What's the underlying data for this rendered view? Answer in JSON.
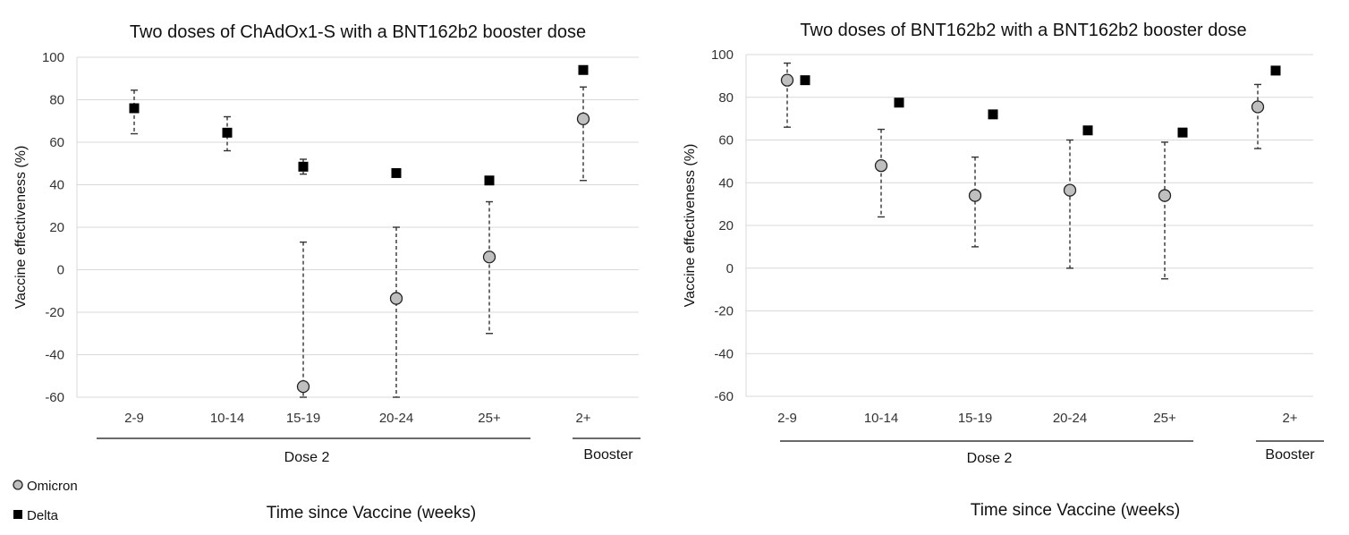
{
  "legend": {
    "placement": "bottom-left",
    "items": [
      {
        "label": "Omicron",
        "marker": "circle",
        "color": "#bfbfbf"
      },
      {
        "label": "Delta",
        "marker": "square",
        "color": "#000000"
      }
    ]
  },
  "colors": {
    "grid": "#d9d9d9",
    "omicron": "#bfbfbf",
    "delta": "#000000",
    "errorbar": "#333333"
  },
  "chart_data": [
    {
      "type": "scatter",
      "title": "Two doses of ChAdOx1-S with a BNT162b2 booster dose",
      "xlabel": "Time since Vaccine (weeks)",
      "ylabel": "Vaccine effectiveness (%)",
      "ylim": [
        -60,
        100
      ],
      "yticks": [
        -60,
        -40,
        -20,
        0,
        20,
        40,
        60,
        80,
        100
      ],
      "grid": true,
      "categories": [
        "2-9",
        "10-14",
        "15-19",
        "20-24",
        "25+",
        "2+"
      ],
      "groups": [
        {
          "label": "Dose 2",
          "categories": [
            "2-9",
            "10-14",
            "15-19",
            "20-24",
            "25+"
          ]
        },
        {
          "label": "Booster",
          "categories": [
            "2+"
          ]
        }
      ],
      "series": [
        {
          "name": "Omicron",
          "marker": "circle",
          "values": [
            null,
            null,
            -55,
            -13.5,
            6,
            71
          ],
          "ci_low": [
            null,
            null,
            -60,
            -60,
            -30,
            42
          ],
          "ci_high": [
            null,
            null,
            13,
            20,
            32,
            86
          ]
        },
        {
          "name": "Delta",
          "marker": "square",
          "values": [
            76,
            64.5,
            48.5,
            45.5,
            42,
            94
          ],
          "ci_low": [
            64,
            56,
            45,
            44.5,
            40.5,
            93
          ],
          "ci_high": [
            84.5,
            72,
            52,
            47,
            43,
            95
          ]
        }
      ]
    },
    {
      "type": "scatter",
      "title": "Two doses of BNT162b2 with a BNT162b2 booster dose",
      "xlabel": "Time since Vaccine (weeks)",
      "ylabel": "Vaccine effectiveness (%)",
      "ylim": [
        -60,
        100
      ],
      "yticks": [
        -60,
        -40,
        -20,
        0,
        20,
        40,
        60,
        80,
        100
      ],
      "grid": true,
      "categories": [
        "2-9",
        "10-14",
        "15-19",
        "20-24",
        "25+",
        "2+"
      ],
      "groups": [
        {
          "label": "Dose 2",
          "categories": [
            "2-9",
            "10-14",
            "15-19",
            "20-24",
            "25+"
          ]
        },
        {
          "label": "Booster",
          "categories": [
            "2+"
          ]
        }
      ],
      "series": [
        {
          "name": "Omicron",
          "marker": "circle",
          "values": [
            88,
            48,
            34,
            36.5,
            34,
            75.5
          ],
          "ci_low": [
            66,
            24,
            10,
            0,
            -5,
            56
          ],
          "ci_high": [
            96,
            65,
            52,
            60,
            59,
            86
          ]
        },
        {
          "name": "Delta",
          "marker": "square",
          "values": [
            88,
            77.5,
            72,
            64.5,
            63.5,
            92.5
          ],
          "ci_low": [
            null,
            null,
            null,
            null,
            null,
            null
          ],
          "ci_high": [
            null,
            null,
            null,
            null,
            null,
            null
          ]
        }
      ]
    }
  ]
}
